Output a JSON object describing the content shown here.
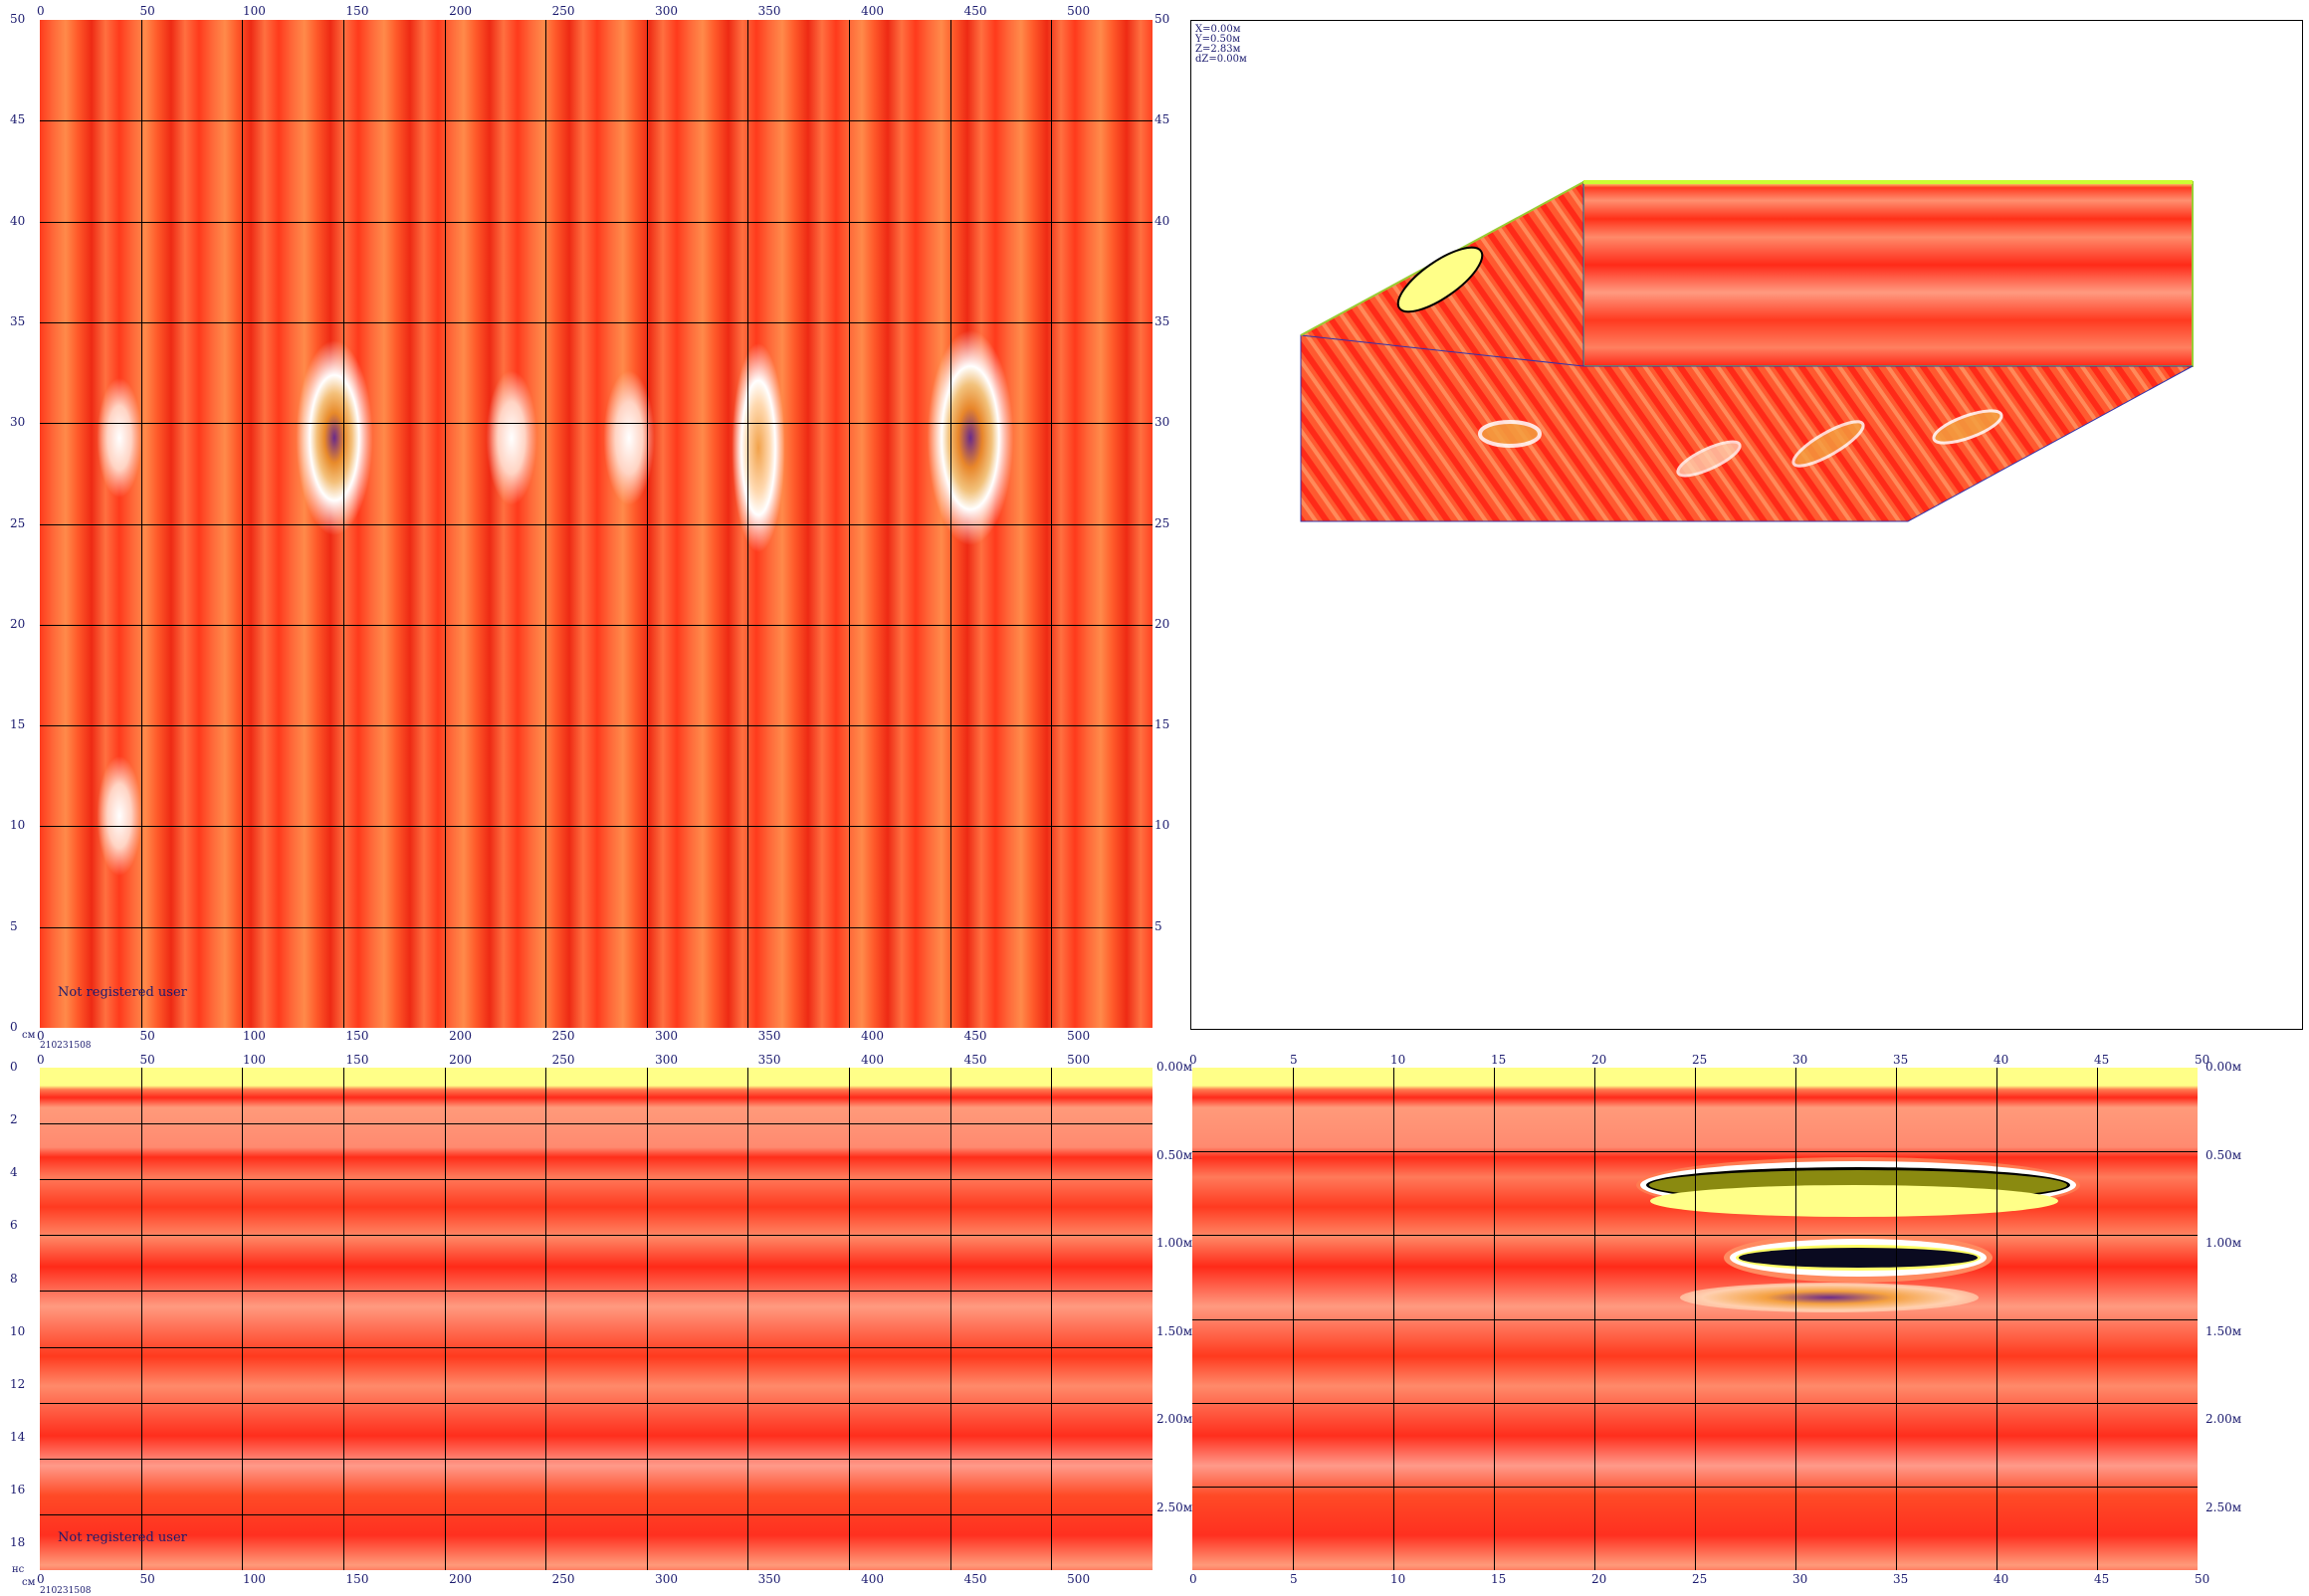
{
  "top_left": {
    "unit_label": "см",
    "right_unit": "см",
    "x_ticks_top": [
      "0",
      "50",
      "100",
      "150",
      "200",
      "250",
      "300",
      "350",
      "400",
      "450",
      "500"
    ],
    "x_ticks_bottom": [
      "0",
      "50",
      "100",
      "150",
      "200",
      "250",
      "300",
      "350",
      "400",
      "450",
      "500"
    ],
    "y_ticks": [
      "50",
      "45",
      "40",
      "35",
      "30",
      "25",
      "20",
      "15",
      "10",
      "5",
      "0"
    ],
    "y_ticks_right": [
      "50",
      "45",
      "40",
      "35",
      "30",
      "25",
      "20",
      "15",
      "10",
      "5"
    ],
    "watermark": "Not registered user",
    "file_id": "210231508"
  },
  "top_right": {
    "coords": [
      "X=0.00м",
      "Y=0.50м",
      "Z=2.83м",
      "dZ=0.00м"
    ]
  },
  "bottom_left": {
    "unit_label": "нс",
    "file_id": "210231508",
    "x_ticks_top": [
      "0",
      "50",
      "100",
      "150",
      "200",
      "250",
      "300",
      "350",
      "400",
      "450",
      "500"
    ],
    "x_ticks_bottom": [
      "0",
      "50",
      "100",
      "150",
      "200",
      "250",
      "300",
      "350",
      "400",
      "450",
      "500"
    ],
    "y_ticks": [
      "0",
      "2",
      "4",
      "6",
      "8",
      "10",
      "12",
      "14",
      "16",
      "18"
    ],
    "watermark": "Not registered user",
    "left_corner_unit": "см"
  },
  "bottom_right": {
    "x_ticks_top": [
      "0",
      "5",
      "10",
      "15",
      "20",
      "25",
      "30",
      "35",
      "40",
      "45",
      "50"
    ],
    "x_ticks_bottom": [
      "0",
      "5",
      "10",
      "15",
      "20",
      "25",
      "30",
      "35",
      "40",
      "45",
      "50"
    ],
    "depth_left": [
      "0.00м",
      "0.50м",
      "1.00м",
      "1.50м",
      "2.00м",
      "2.50м"
    ],
    "depth_right": [
      "0.00м",
      "0.50м",
      "1.00м",
      "1.50м",
      "2.00м",
      "2.50м"
    ]
  }
}
